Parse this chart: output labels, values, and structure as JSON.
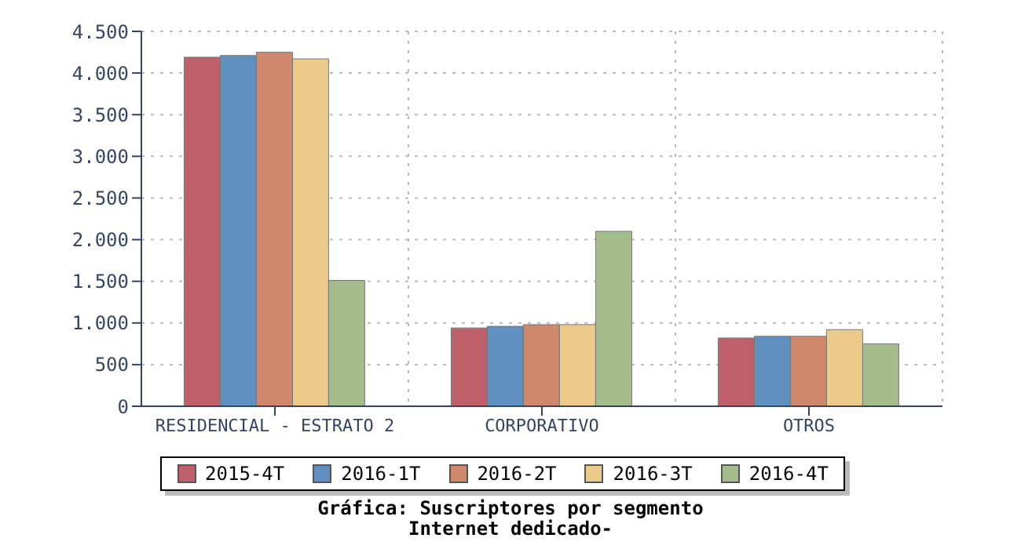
{
  "chart_data": {
    "type": "bar",
    "title": "Gráfica: Suscriptores por segmento",
    "subtitle": "Internet dedicado-",
    "categories": [
      "RESIDENCIAL - ESTRATO 2",
      "CORPORATIVO",
      "OTROS"
    ],
    "series": [
      {
        "name": "2015-4T",
        "color": "#c0606a",
        "values": [
          4190,
          940,
          820
        ]
      },
      {
        "name": "2016-1T",
        "color": "#6090c0",
        "values": [
          4210,
          960,
          840
        ]
      },
      {
        "name": "2016-2T",
        "color": "#d0886c",
        "values": [
          4250,
          980,
          840
        ]
      },
      {
        "name": "2016-3T",
        "color": "#ecca8a",
        "values": [
          4170,
          980,
          920
        ]
      },
      {
        "name": "2016-4T",
        "color": "#a4bc8c",
        "values": [
          1510,
          2100,
          750
        ]
      }
    ],
    "ylim": [
      0,
      4500
    ],
    "yticks": [
      0,
      500,
      {
        "value": 1000,
        "label": "1.000"
      },
      {
        "value": 1500,
        "label": "1.500"
      },
      {
        "value": 2000,
        "label": "2.000"
      },
      {
        "value": 2500,
        "label": "2.500"
      },
      {
        "value": 3000,
        "label": "3.000"
      },
      {
        "value": 3500,
        "label": "3.500"
      },
      {
        "value": 4000,
        "label": "4.000"
      },
      {
        "value": 4500,
        "label": "4.500"
      }
    ],
    "grid": true,
    "legend": "bottom"
  }
}
